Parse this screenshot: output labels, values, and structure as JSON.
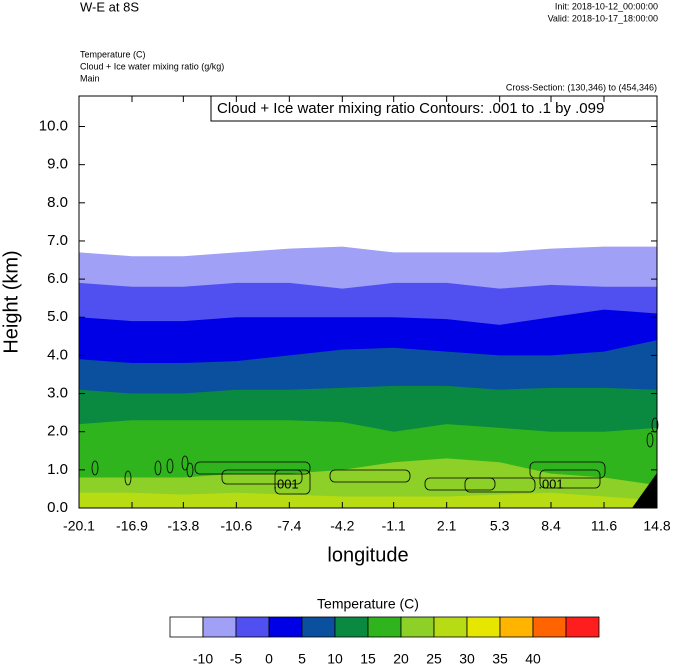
{
  "chart_data": {
    "type": "filled-contour",
    "title": "W-E at 8S",
    "init": "Init: 2018-10-12_00:00:00",
    "valid": "Valid: 2018-10-17_18:00:00",
    "fields": [
      "Temperature   (C)",
      "Cloud + Ice water mixing ratio   (g/kg)",
      "Main"
    ],
    "cross_section": "Cross-Section: (130,346) to (454,346)",
    "contour_info": "Cloud + Ice water mixing ratio Contours: .001 to .1 by .099",
    "xlabel": "longitude",
    "ylabel": "Height (km)",
    "xlim": [
      -20.1,
      14.8
    ],
    "xticks": [
      -20.1,
      -16.9,
      -13.8,
      -10.6,
      -7.4,
      -4.2,
      -1.1,
      2.1,
      5.3,
      8.4,
      11.6,
      14.8
    ],
    "ylim": [
      0,
      10.8
    ],
    "yticks": [
      {
        "value": 0,
        "label": "0.0"
      },
      {
        "value": 1,
        "label": "1.0"
      },
      {
        "value": 2,
        "label": "2.0"
      },
      {
        "value": 3,
        "label": "3.0"
      },
      {
        "value": 4,
        "label": "4.0"
      },
      {
        "value": 5,
        "label": "5.0"
      },
      {
        "value": 6,
        "label": "6.0"
      },
      {
        "value": 7,
        "label": "7.0"
      },
      {
        "value": 8,
        "label": "8.0"
      },
      {
        "value": 9,
        "label": "9.0"
      },
      {
        "value": 10,
        "label": "10.0"
      }
    ],
    "x": [
      -20.1,
      -16.9,
      -13.8,
      -10.6,
      -7.4,
      -4.2,
      -1.1,
      2.1,
      5.3,
      8.4,
      11.6,
      14.8
    ],
    "contours": [
      {
        "level": -10,
        "heights": [
          6.7,
          6.6,
          6.6,
          6.7,
          6.8,
          6.85,
          6.7,
          6.7,
          6.7,
          6.8,
          6.85,
          6.85
        ]
      },
      {
        "level": -5,
        "heights": [
          5.9,
          5.8,
          5.8,
          5.9,
          5.9,
          5.75,
          5.9,
          5.9,
          5.75,
          5.85,
          5.8,
          5.8
        ]
      },
      {
        "level": 0,
        "heights": [
          5.0,
          4.9,
          4.9,
          5.0,
          5.0,
          5.0,
          5.0,
          4.95,
          4.8,
          5.0,
          5.2,
          5.1
        ]
      },
      {
        "level": 5,
        "heights": [
          3.9,
          3.8,
          3.8,
          3.85,
          4.0,
          4.15,
          4.2,
          4.1,
          4.0,
          4.0,
          4.1,
          4.4
        ]
      },
      {
        "level": 10,
        "heights": [
          3.1,
          3.0,
          3.0,
          3.1,
          3.1,
          3.15,
          3.2,
          3.2,
          3.1,
          3.15,
          3.15,
          3.1
        ]
      },
      {
        "level": 15,
        "heights": [
          2.2,
          2.3,
          2.3,
          2.3,
          2.3,
          2.25,
          2.0,
          2.2,
          2.1,
          2.0,
          2.0,
          2.1
        ]
      },
      {
        "level": 20,
        "heights": [
          0.8,
          0.8,
          0.8,
          0.9,
          0.9,
          1.0,
          1.2,
          1.3,
          1.2,
          0.9,
          0.8,
          0.6
        ]
      },
      {
        "level": 25,
        "heights": [
          0.4,
          0.4,
          0.35,
          0.4,
          0.35,
          0.3,
          0.3,
          0.3,
          0.35,
          0.4,
          0.3,
          0.2
        ]
      }
    ],
    "contour_labels": [
      {
        "x": -7.6,
        "y": 0.6,
        "label": ".001"
      },
      {
        "x": 8.4,
        "y": 0.6,
        "label": ".001"
      }
    ],
    "colorbar": {
      "title": "Temperature  (C)",
      "levels": [
        -10,
        -5,
        0,
        5,
        10,
        15,
        20,
        25,
        30,
        35,
        40
      ],
      "colors": [
        "#ffffff",
        "#a0a0f6",
        "#5050f0",
        "#0000e6",
        "#0a509e",
        "#0a8a40",
        "#30b41e",
        "#8cd028",
        "#b8dc14",
        "#e6e600",
        "#ffb400",
        "#ff6400",
        "#ff1e1e"
      ]
    }
  }
}
